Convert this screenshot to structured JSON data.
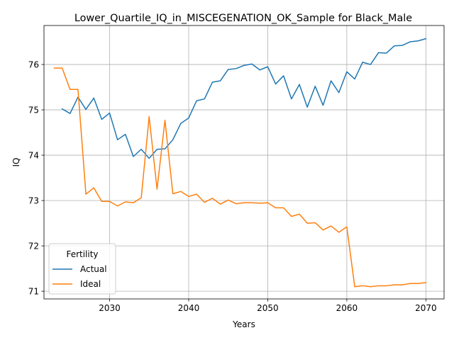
{
  "chart_data": {
    "type": "line",
    "title": "Lower_Quartile_IQ_in_MISCEGENATION_OK_Sample for Black_Male",
    "xlabel": "Years",
    "ylabel": "IQ",
    "xlim": [
      2021.7,
      2072.3
    ],
    "ylim": [
      70.83,
      76.86
    ],
    "xticks": [
      2030,
      2040,
      2050,
      2060,
      2070
    ],
    "yticks": [
      71,
      72,
      73,
      74,
      75,
      76
    ],
    "grid": true,
    "legend": {
      "title": "Fertility",
      "position": "lower-left"
    },
    "series": [
      {
        "name": "Actual",
        "color": "#1f77b4",
        "x": [
          2024,
          2025,
          2026,
          2027,
          2028,
          2029,
          2030,
          2031,
          2032,
          2033,
          2034,
          2035,
          2036,
          2037,
          2038,
          2039,
          2040,
          2041,
          2042,
          2043,
          2044,
          2045,
          2046,
          2047,
          2048,
          2049,
          2050,
          2051,
          2052,
          2053,
          2054,
          2055,
          2056,
          2057,
          2058,
          2059,
          2060,
          2061,
          2062,
          2063,
          2064,
          2065,
          2066,
          2067,
          2068,
          2069,
          2070
        ],
        "values": [
          75.02,
          74.92,
          75.28,
          75.01,
          75.26,
          74.79,
          74.93,
          74.34,
          74.46,
          73.97,
          74.13,
          73.93,
          74.13,
          74.14,
          74.34,
          74.7,
          74.82,
          75.2,
          75.24,
          75.61,
          75.64,
          75.89,
          75.91,
          75.98,
          76.01,
          75.88,
          75.95,
          75.57,
          75.75,
          75.24,
          75.56,
          75.06,
          75.52,
          75.1,
          75.64,
          75.38,
          75.84,
          75.68,
          76.05,
          76.0,
          76.26,
          76.25,
          76.41,
          76.42,
          76.5,
          76.52,
          76.57
        ]
      },
      {
        "name": "Ideal",
        "color": "#ff7f0e",
        "x": [
          2023,
          2024,
          2025,
          2026,
          2027,
          2028,
          2029,
          2030,
          2031,
          2032,
          2033,
          2034,
          2035,
          2036,
          2037,
          2038,
          2039,
          2040,
          2041,
          2042,
          2043,
          2044,
          2045,
          2046,
          2047,
          2048,
          2049,
          2050,
          2051,
          2052,
          2053,
          2054,
          2055,
          2056,
          2057,
          2058,
          2059,
          2060,
          2061,
          2062,
          2063,
          2064,
          2065,
          2066,
          2067,
          2068,
          2069,
          2070
        ],
        "values": [
          75.92,
          75.92,
          75.45,
          75.45,
          73.14,
          73.28,
          72.98,
          72.98,
          72.88,
          72.97,
          72.95,
          73.06,
          74.85,
          73.25,
          74.77,
          73.15,
          73.2,
          73.09,
          73.14,
          72.96,
          73.05,
          72.92,
          73.01,
          72.93,
          72.95,
          72.95,
          72.94,
          72.95,
          72.84,
          72.84,
          72.65,
          72.7,
          72.5,
          72.51,
          72.35,
          72.44,
          72.3,
          72.42,
          71.1,
          71.12,
          71.1,
          71.12,
          71.12,
          71.14,
          71.14,
          71.17,
          71.17,
          71.19
        ]
      }
    ]
  }
}
